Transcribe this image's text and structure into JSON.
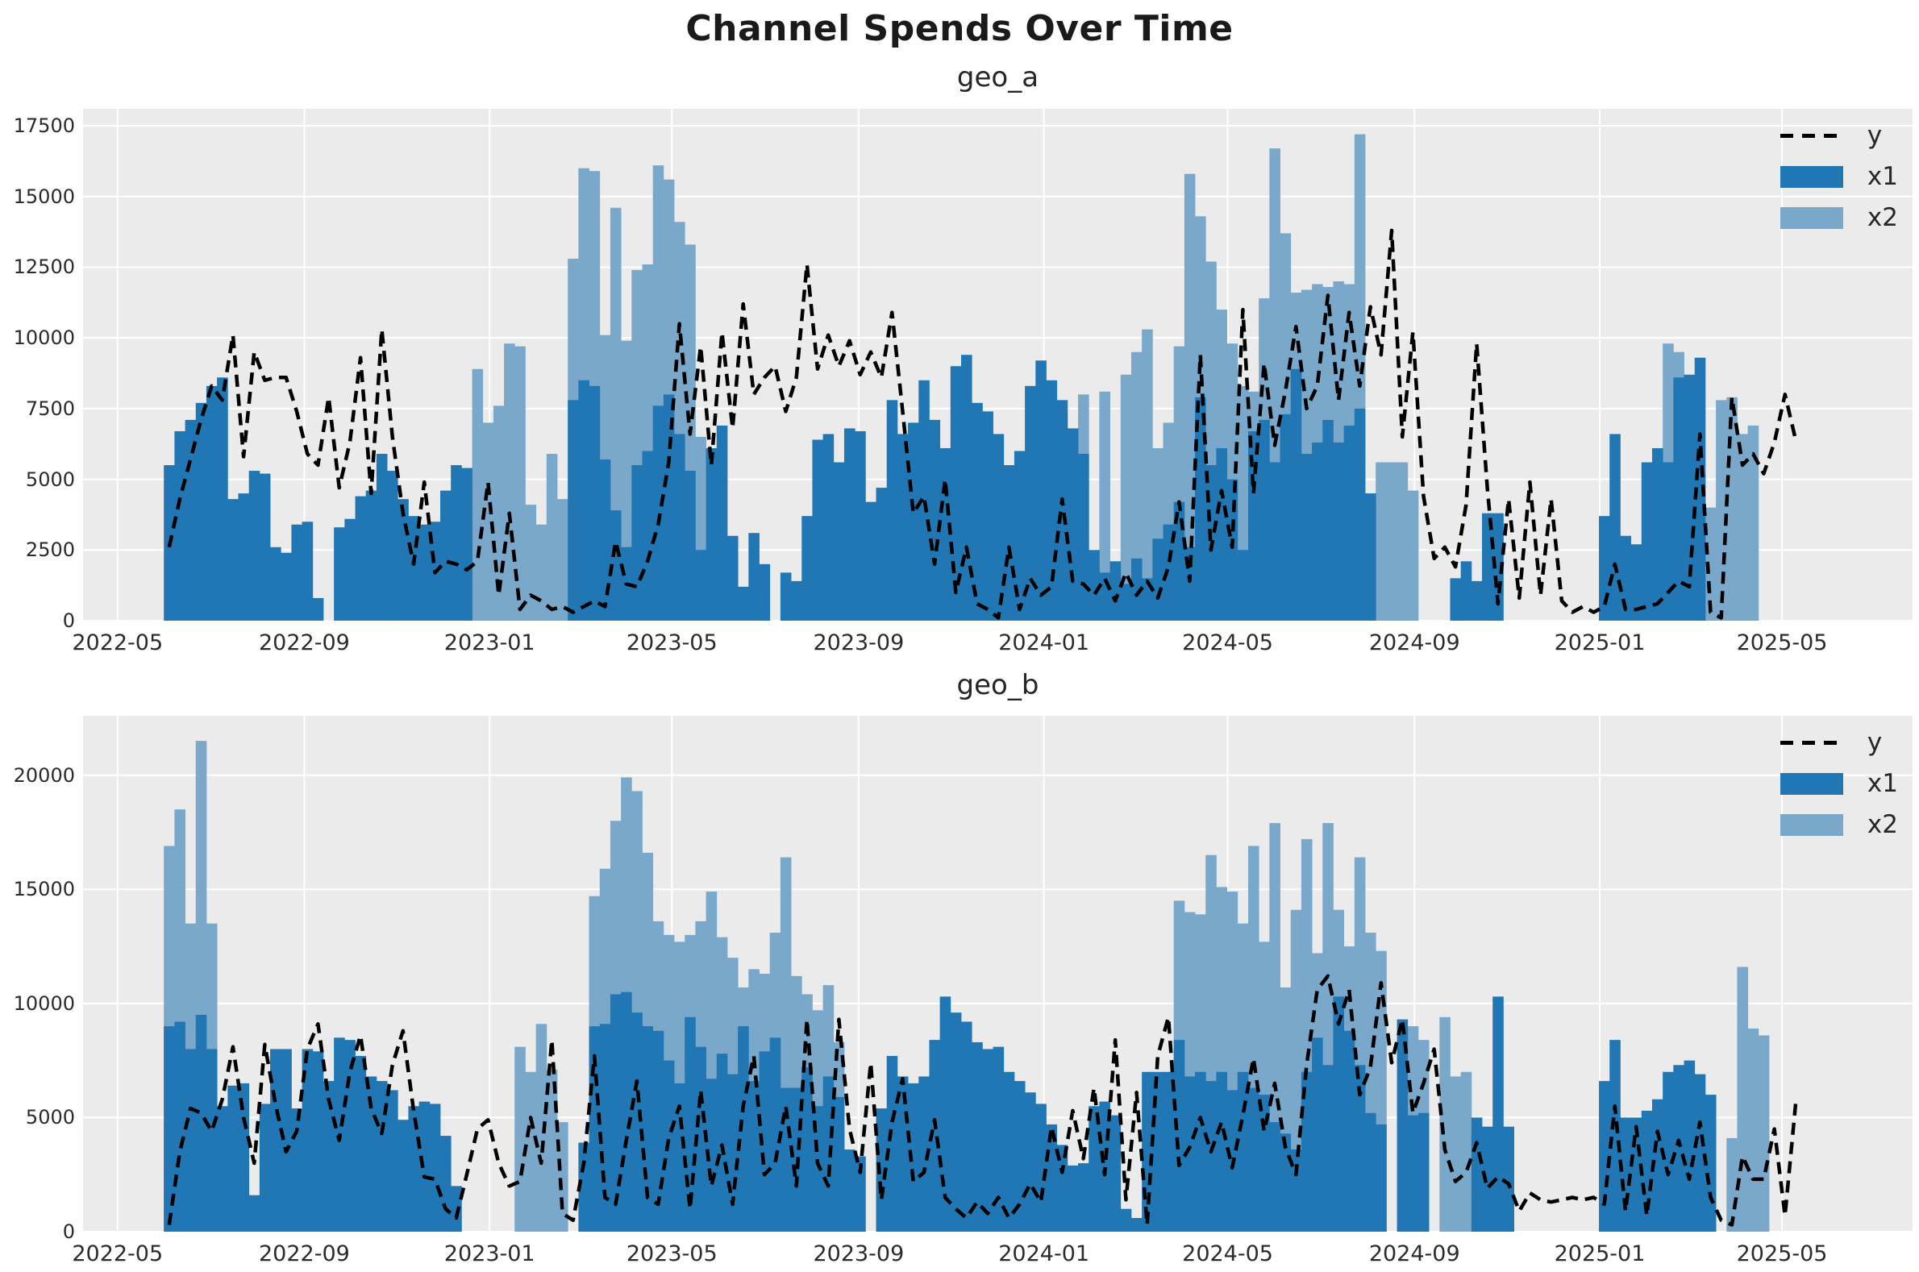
{
  "figure_title": "Channel Spends Over Time",
  "colors": {
    "x1": "#2077b4",
    "x2": "#7aa8cb",
    "line": "#000000",
    "axes_bg": "#ebebeb",
    "grid": "#ffffff",
    "text": "#262626"
  },
  "chart_data": [
    {
      "id": "geo_a",
      "type": "bar+line",
      "title": "geo_a",
      "x_start_date": "2022-06-04",
      "x_freq": "weekly",
      "xlim_weeks": [
        -8.1,
        164.0
      ],
      "ylim": [
        0,
        18100
      ],
      "grid": true,
      "legend_position": "upper right",
      "legend": [
        {
          "label": "y",
          "type": "dashed-line"
        },
        {
          "label": "x1",
          "type": "bar"
        },
        {
          "label": "x2",
          "type": "bar"
        }
      ],
      "x_ticks": [
        {
          "w": -4.857,
          "label": "2022-05"
        },
        {
          "w": 12.714,
          "label": "2022-09"
        },
        {
          "w": 30.143,
          "label": "2023-01"
        },
        {
          "w": 47.286,
          "label": "2023-05"
        },
        {
          "w": 64.857,
          "label": "2023-09"
        },
        {
          "w": 82.286,
          "label": "2024-01"
        },
        {
          "w": 99.571,
          "label": "2024-05"
        },
        {
          "w": 117.143,
          "label": "2024-09"
        },
        {
          "w": 134.571,
          "label": "2025-01"
        },
        {
          "w": 151.714,
          "label": "2025-05"
        }
      ],
      "y_ticks": [
        0,
        2500,
        5000,
        7500,
        10000,
        12500,
        15000,
        17500
      ],
      "series": [
        {
          "name": "x2",
          "kind": "bar",
          "values": [
            0,
            0,
            0,
            0,
            0,
            0,
            0,
            0,
            0,
            0,
            0,
            0,
            0,
            0,
            0,
            0,
            0,
            0,
            0,
            0,
            0,
            0,
            0,
            0,
            0,
            0,
            0,
            0,
            0,
            8900,
            7000,
            7600,
            9800,
            9700,
            4100,
            3400,
            5900,
            4300,
            12800,
            16000,
            15900,
            10100,
            14600,
            9900,
            12400,
            12600,
            16100,
            15600,
            14100,
            13300,
            6500,
            1200,
            0,
            0,
            0,
            0,
            0,
            0,
            0,
            0,
            0,
            0,
            0,
            0,
            0,
            0,
            0,
            0,
            0,
            0,
            0,
            0,
            0,
            0,
            0,
            0,
            0,
            0,
            0,
            0,
            0,
            0,
            0,
            0,
            0,
            0,
            8000,
            0,
            8100,
            0,
            8700,
            9500,
            10300,
            6100,
            7000,
            9700,
            15800,
            14300,
            12700,
            11000,
            9800,
            8300,
            8100,
            11400,
            16700,
            13700,
            11600,
            11700,
            11900,
            11800,
            12000,
            11900,
            17200,
            4500,
            5600,
            5600,
            5600,
            4600,
            0,
            0,
            0,
            0,
            0,
            0,
            0,
            0,
            0,
            0,
            0,
            0,
            0,
            0,
            0,
            0,
            0,
            0,
            0,
            0,
            0,
            0,
            4300,
            9800,
            9500,
            7300,
            5200,
            4000,
            7800,
            7900,
            6600,
            6900,
            0,
            0
          ]
        },
        {
          "name": "x1",
          "kind": "bar",
          "values": [
            5500,
            6700,
            7100,
            7700,
            8300,
            8600,
            4300,
            4500,
            5300,
            5200,
            2600,
            2400,
            3400,
            3500,
            800,
            0,
            3300,
            3600,
            4400,
            4600,
            5900,
            5300,
            4300,
            3700,
            3400,
            3500,
            4600,
            5500,
            5400,
            0,
            0,
            0,
            0,
            0,
            0,
            0,
            0,
            0,
            7800,
            8500,
            8300,
            5700,
            3900,
            2600,
            5500,
            6000,
            7600,
            8000,
            6600,
            5300,
            2500,
            6100,
            6900,
            3000,
            1200,
            3100,
            2000,
            0,
            1700,
            1400,
            3700,
            6400,
            6600,
            5600,
            6800,
            6700,
            4200,
            4700,
            7800,
            6600,
            7000,
            8500,
            7100,
            6100,
            9000,
            9400,
            7700,
            7400,
            6600,
            5500,
            6000,
            8300,
            9200,
            8500,
            7800,
            6800,
            5900,
            2500,
            1700,
            2100,
            1300,
            2200,
            1500,
            2900,
            3400,
            4200,
            2600,
            7900,
            5500,
            6100,
            5000,
            2500,
            6700,
            7100,
            5600,
            7300,
            8900,
            5900,
            6300,
            7100,
            6300,
            6900,
            7500,
            4500,
            0,
            0,
            0,
            0,
            0,
            0,
            0,
            1500,
            2100,
            1400,
            3800,
            3800,
            0,
            0,
            0,
            0,
            0,
            0,
            0,
            0,
            0,
            3700,
            6600,
            3000,
            2700,
            5600,
            6100,
            5600,
            8600,
            8700,
            9300,
            0,
            0,
            0,
            0,
            0,
            0,
            0,
            0,
            0,
            0,
            0,
            0,
            0
          ]
        },
        {
          "name": "y",
          "kind": "line",
          "values": [
            2600,
            4300,
            5700,
            7100,
            8300,
            7800,
            10100,
            5800,
            9500,
            8500,
            8600,
            8600,
            7400,
            5900,
            5500,
            7900,
            4700,
            6300,
            9300,
            4500,
            10300,
            6500,
            3800,
            2000,
            4900,
            1700,
            2100,
            2000,
            1800,
            2100,
            4900,
            900,
            3800,
            400,
            900,
            700,
            400,
            500,
            300,
            500,
            700,
            500,
            2800,
            1300,
            1200,
            2100,
            3400,
            5600,
            10500,
            6600,
            9700,
            5500,
            10200,
            6800,
            11200,
            8000,
            8600,
            9000,
            7400,
            8600,
            12600,
            8900,
            10100,
            9000,
            9900,
            8700,
            9500,
            8600,
            10900,
            7400,
            3800,
            4400,
            2000,
            5000,
            1000,
            2600,
            600,
            400,
            100,
            2600,
            400,
            1500,
            900,
            1200,
            4300,
            1400,
            1300,
            900,
            1500,
            700,
            1700,
            900,
            1400,
            800,
            1900,
            4200,
            1400,
            9400,
            2500,
            4600,
            2600,
            11000,
            4500,
            9100,
            6200,
            8100,
            10400,
            7500,
            8300,
            11500,
            7800,
            10900,
            8300,
            11100,
            9400,
            13800,
            6500,
            10200,
            4400,
            2200,
            2600,
            1900,
            4100,
            9800,
            4700,
            600,
            4300,
            800,
            4900,
            900,
            4300,
            700,
            300,
            500,
            300,
            500,
            2000,
            400,
            400,
            500,
            600,
            1000,
            1400,
            1200,
            6600,
            300,
            100,
            7900,
            5500,
            5900,
            5200,
            6300,
            8000,
            6400,
            null,
            null,
            null,
            null
          ]
        }
      ]
    },
    {
      "id": "geo_b",
      "type": "bar+line",
      "title": "geo_b",
      "x_start_date": "2022-06-04",
      "x_freq": "weekly",
      "xlim_weeks": [
        -8.1,
        164.0
      ],
      "ylim": [
        0,
        22600
      ],
      "grid": true,
      "legend_position": "upper right",
      "legend": [
        {
          "label": "y",
          "type": "dashed-line"
        },
        {
          "label": "x1",
          "type": "bar"
        },
        {
          "label": "x2",
          "type": "bar"
        }
      ],
      "x_ticks": [
        {
          "w": -4.857,
          "label": "2022-05"
        },
        {
          "w": 12.714,
          "label": "2022-09"
        },
        {
          "w": 30.143,
          "label": "2023-01"
        },
        {
          "w": 47.286,
          "label": "2023-05"
        },
        {
          "w": 64.857,
          "label": "2023-09"
        },
        {
          "w": 82.286,
          "label": "2024-01"
        },
        {
          "w": 99.571,
          "label": "2024-05"
        },
        {
          "w": 117.143,
          "label": "2024-09"
        },
        {
          "w": 134.571,
          "label": "2025-01"
        },
        {
          "w": 151.714,
          "label": "2025-05"
        }
      ],
      "y_ticks": [
        0,
        5000,
        10000,
        15000,
        20000
      ],
      "series": [
        {
          "name": "x2",
          "kind": "bar",
          "values": [
            16900,
            18500,
            13500,
            21500,
            13500,
            0,
            0,
            0,
            0,
            0,
            0,
            0,
            0,
            0,
            0,
            0,
            0,
            0,
            0,
            0,
            0,
            0,
            0,
            0,
            0,
            0,
            0,
            0,
            0,
            0,
            0,
            0,
            0,
            8100,
            7000,
            9100,
            7100,
            4800,
            0,
            0,
            14700,
            15900,
            18000,
            19900,
            19300,
            16600,
            13600,
            13000,
            12700,
            13000,
            13600,
            14900,
            12900,
            12000,
            10700,
            11500,
            11300,
            13100,
            16400,
            11200,
            10400,
            9700,
            10800,
            8300,
            0,
            0,
            0,
            0,
            0,
            0,
            0,
            0,
            0,
            0,
            0,
            0,
            0,
            0,
            0,
            0,
            0,
            0,
            0,
            0,
            0,
            0,
            0,
            0,
            0,
            0,
            0,
            0,
            0,
            0,
            0,
            14500,
            14000,
            13900,
            16500,
            15100,
            14900,
            13500,
            16900,
            12700,
            17900,
            10700,
            14100,
            17200,
            12200,
            17900,
            14100,
            12500,
            16400,
            13100,
            12300,
            0,
            0,
            9000,
            8400,
            0,
            9400,
            6800,
            7000,
            0,
            0,
            0,
            0,
            0,
            0,
            0,
            0,
            0,
            0,
            0,
            0,
            0,
            0,
            0,
            0,
            0,
            0,
            0,
            0,
            0,
            0,
            0,
            0,
            4100,
            11600,
            8900,
            8600,
            0,
            0,
            0,
            0
          ]
        },
        {
          "name": "x1",
          "kind": "bar",
          "values": [
            9000,
            9200,
            8000,
            9500,
            8000,
            5500,
            6400,
            6500,
            1600,
            5600,
            8000,
            8000,
            5400,
            8000,
            7900,
            6600,
            8500,
            8400,
            7700,
            6800,
            6600,
            6200,
            4900,
            5500,
            5700,
            5600,
            4200,
            2000,
            0,
            0,
            0,
            0,
            0,
            0,
            0,
            0,
            0,
            0,
            0,
            3900,
            9000,
            9100,
            10400,
            10500,
            9600,
            9000,
            8800,
            7500,
            6500,
            9400,
            8100,
            6700,
            7800,
            6900,
            9000,
            6600,
            7900,
            8500,
            6300,
            6300,
            7200,
            5500,
            6800,
            5900,
            3600,
            3300,
            0,
            5400,
            7700,
            6800,
            6500,
            6800,
            8400,
            10300,
            9600,
            9200,
            8300,
            8000,
            8100,
            7000,
            6600,
            6100,
            5600,
            4700,
            3800,
            2900,
            3000,
            5500,
            5700,
            5100,
            1000,
            600,
            7000,
            7000,
            7000,
            8400,
            6800,
            7000,
            6600,
            7000,
            6200,
            7000,
            6300,
            6000,
            4800,
            4300,
            3600,
            7000,
            8500,
            7300,
            10300,
            8800,
            7300,
            5200,
            4700,
            0,
            9300,
            5100,
            5200,
            0,
            0,
            0,
            0,
            5000,
            4600,
            10300,
            4600,
            0,
            0,
            0,
            0,
            0,
            0,
            0,
            0,
            6600,
            8400,
            5000,
            5000,
            5300,
            5800,
            7000,
            7300,
            7500,
            6900,
            6000,
            0,
            0,
            0,
            0,
            0,
            0,
            0,
            0,
            0,
            0,
            0,
            0
          ]
        },
        {
          "name": "y",
          "kind": "line",
          "values": [
            300,
            3500,
            5400,
            5200,
            4400,
            5800,
            8100,
            5000,
            3000,
            8200,
            5600,
            3500,
            4400,
            8000,
            9100,
            5800,
            4000,
            7000,
            8600,
            5400,
            4300,
            7300,
            8800,
            5300,
            2400,
            2300,
            1000,
            600,
            2500,
            4500,
            4900,
            3000,
            2000,
            2200,
            5000,
            3000,
            8400,
            800,
            500,
            3000,
            7700,
            1500,
            1200,
            4000,
            6600,
            1500,
            1200,
            4100,
            5500,
            1000,
            6200,
            2000,
            3800,
            1200,
            5500,
            7700,
            2500,
            3000,
            5500,
            2000,
            9300,
            3000,
            2000,
            9300,
            4500,
            2600,
            7400,
            1400,
            4800,
            6700,
            2200,
            2600,
            4900,
            1500,
            1000,
            600,
            1300,
            800,
            1500,
            600,
            1200,
            2100,
            1300,
            4600,
            2600,
            5300,
            3200,
            6300,
            2500,
            8400,
            1400,
            6100,
            300,
            7700,
            9400,
            2900,
            3700,
            5000,
            3500,
            4800,
            2800,
            5100,
            7600,
            4400,
            6500,
            3700,
            2500,
            7300,
            10600,
            11200,
            9100,
            10600,
            6000,
            7200,
            10900,
            7400,
            9300,
            5200,
            6500,
            8000,
            3600,
            2200,
            2600,
            3900,
            1900,
            2400,
            2100,
            900,
            1700,
            1400,
            1300,
            1400,
            1500,
            1400,
            1500,
            1200,
            5500,
            900,
            4600,
            700,
            4400,
            2500,
            4000,
            2300,
            4800,
            1500,
            500,
            300,
            3300,
            2300,
            2300,
            4500,
            700,
            5600,
            null,
            null,
            null,
            null
          ]
        }
      ]
    }
  ]
}
